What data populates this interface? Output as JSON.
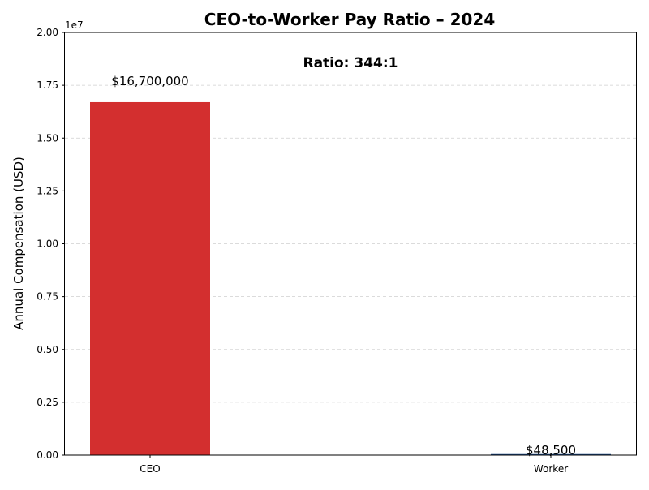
{
  "chart_data": {
    "type": "bar",
    "title": "CEO-to-Worker Pay Ratio – 2024",
    "ylabel": "Annual Compensation (USD)",
    "xlabel": "",
    "annotation": "Ratio: 344:1",
    "offset_label": "1e7",
    "categories": [
      "CEO",
      "Worker"
    ],
    "values": [
      16700000,
      48500
    ],
    "value_labels": [
      "$16,700,000",
      "$48,500"
    ],
    "colors": [
      "#d32f2f",
      "#1f4e8c"
    ],
    "ylim": [
      0,
      20000000
    ],
    "yticks": [
      0,
      2500000,
      5000000,
      7500000,
      10000000,
      12500000,
      15000000,
      17500000,
      20000000
    ],
    "ytick_labels": [
      "0.00",
      "0.25",
      "0.50",
      "0.75",
      "1.00",
      "1.25",
      "1.50",
      "1.75",
      "2.00"
    ],
    "grid": "y dashed",
    "legend": "none"
  }
}
